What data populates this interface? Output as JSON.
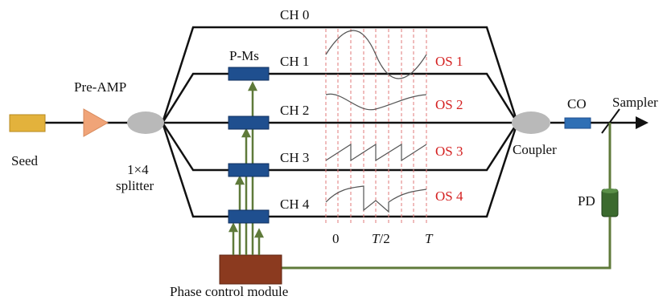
{
  "labels": {
    "seed": "Seed",
    "pre_amp": "Pre-AMP",
    "splitter_line1": "1×4",
    "splitter_line2": "splitter",
    "pms": "P-Ms",
    "coupler": "Coupler",
    "co": "CO",
    "sampler": "Sampler",
    "pd": "PD",
    "phase_control": "Phase control module"
  },
  "channels": [
    "CH 0",
    "CH 1",
    "CH 2",
    "CH 3",
    "CH 4"
  ],
  "signals": [
    "OS 1",
    "OS 2",
    "OS 3",
    "OS 4"
  ],
  "time_axis": {
    "t0": "0",
    "t_half_italic": "T",
    "t_half_suffix": "/2",
    "t_full": "T"
  },
  "colors": {
    "fiber": "#111111",
    "seed": "#e3b23c",
    "pre_amp": "#f0a478",
    "splitter": "#b9b9b9",
    "modulator": "#1f4f8f",
    "feedback": "#5f7a3a",
    "phase_module": "#8b3a1f",
    "pd": "#3b6a2e",
    "signal_label": "#d42020",
    "dashed_guides": "#e07a7a"
  }
}
